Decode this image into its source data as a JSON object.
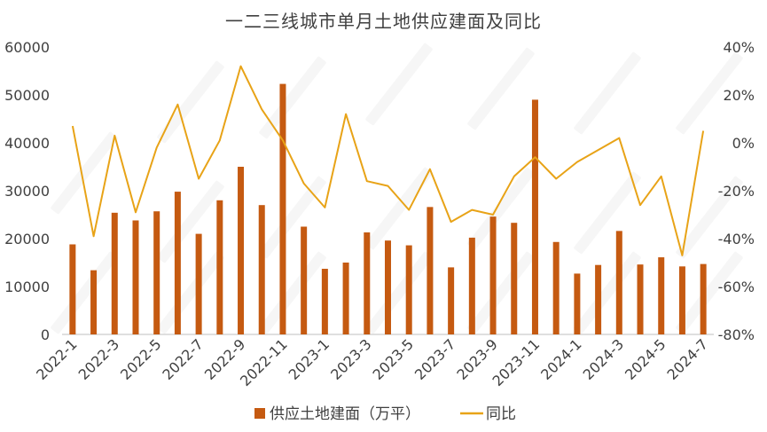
{
  "chart_data": {
    "type": "bar+line",
    "title": "一二三线城市单月土地供应建面及同比",
    "categories": [
      "2022-1",
      "2022-2",
      "2022-3",
      "2022-4",
      "2022-5",
      "2022-6",
      "2022-7",
      "2022-8",
      "2022-9",
      "2022-10",
      "2022-11",
      "2022-12",
      "2023-1",
      "2023-2",
      "2023-3",
      "2023-4",
      "2023-5",
      "2023-6",
      "2023-7",
      "2023-8",
      "2023-9",
      "2023-10",
      "2023-11",
      "2023-12",
      "2024-1",
      "2024-2",
      "2024-3",
      "2024-4",
      "2024-5",
      "2024-6",
      "2024-7"
    ],
    "x_tick_labels": [
      "2022-1",
      "2022-3",
      "2022-5",
      "2022-7",
      "2022-9",
      "2022-11",
      "2023-1",
      "2023-3",
      "2023-5",
      "2023-7",
      "2023-9",
      "2023-11",
      "2024-1",
      "2024-3",
      "2024-5",
      "2024-7"
    ],
    "series": [
      {
        "name": "供应土地建面（万平）",
        "type": "bar",
        "axis": "left",
        "color": "#C55A11",
        "values": [
          18800,
          13400,
          25400,
          23800,
          25700,
          29800,
          21000,
          28000,
          35000,
          27000,
          52300,
          22500,
          13700,
          15000,
          21300,
          19600,
          18600,
          26600,
          14000,
          20200,
          24600,
          23300,
          49000,
          19300,
          12700,
          14500,
          21600,
          14600,
          16100,
          14200,
          14700
        ]
      },
      {
        "name": "同比",
        "type": "line",
        "axis": "right",
        "color": "#E8A317",
        "values": [
          7,
          -39,
          3,
          -29,
          -2,
          16,
          -15,
          1,
          32,
          14,
          1,
          -17,
          -27,
          12,
          -16,
          -18,
          -28,
          -11,
          -33,
          -28,
          -30,
          -14,
          -6,
          -15,
          -8,
          -3,
          2,
          -26,
          -14,
          -47,
          5
        ]
      }
    ],
    "left_axis": {
      "ylim": [
        0,
        60000
      ],
      "ticks": [
        "0",
        "10000",
        "20000",
        "30000",
        "40000",
        "50000",
        "60000"
      ]
    },
    "right_axis": {
      "ylim": [
        -80,
        40
      ],
      "ticks": [
        "-80%",
        "-60%",
        "-40%",
        "-20%",
        "0%",
        "20%",
        "40%"
      ]
    },
    "legend_position": "bottom",
    "grid": false
  }
}
